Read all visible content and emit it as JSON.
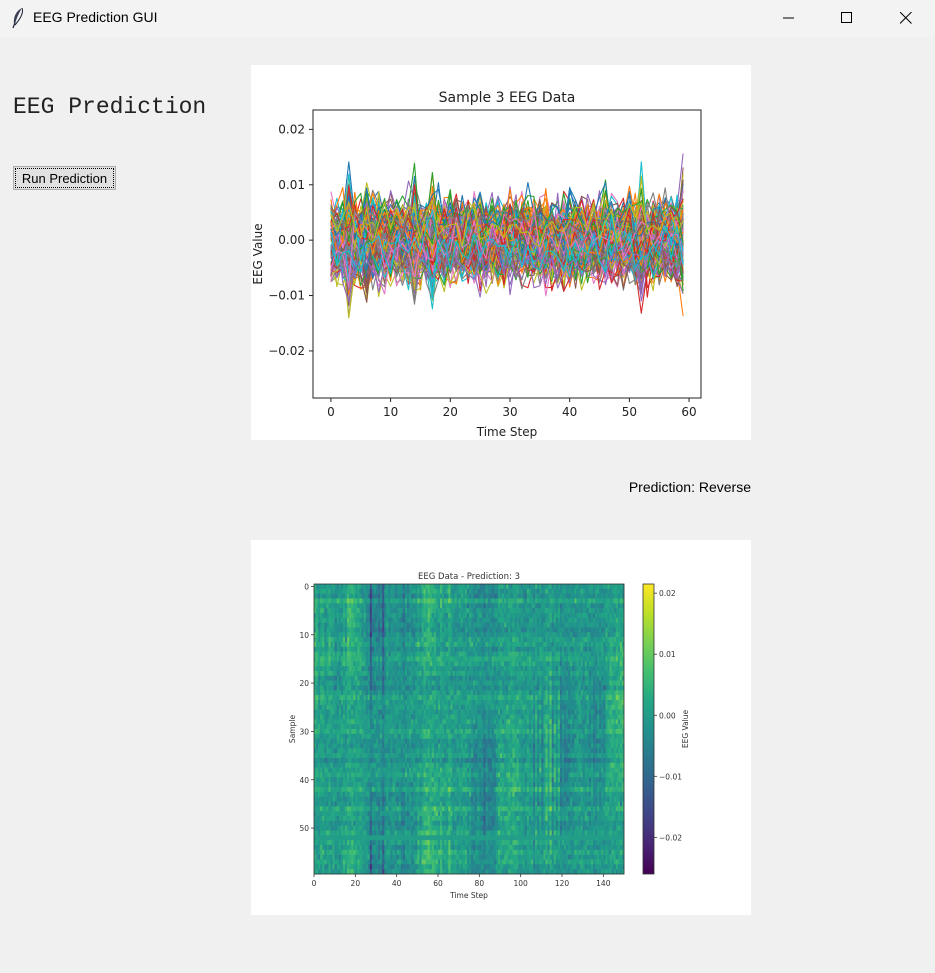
{
  "window": {
    "title": "EEG Prediction GUI",
    "app_icon": "feather-icon",
    "controls": [
      "minimize-icon",
      "maximize-icon",
      "close-icon"
    ]
  },
  "main": {
    "heading": "EEG Prediction",
    "run_button_label": "Run Prediction",
    "prediction_text": "Prediction: Reverse"
  },
  "chart_data": [
    {
      "type": "line",
      "title": "Sample 3 EEG Data",
      "xlabel": "Time Step",
      "ylabel": "EEG Value",
      "xlim": [
        -3,
        62
      ],
      "ylim": [
        -0.0285,
        0.0235
      ],
      "xticks": [
        0,
        10,
        20,
        30,
        40,
        50,
        60
      ],
      "xtick_labels": [
        "0",
        "10",
        "20",
        "30",
        "40",
        "50",
        "60"
      ],
      "yticks": [
        0.02,
        0.01,
        0.0,
        -0.01,
        -0.02
      ],
      "ytick_labels": [
        "0.02",
        "0.01",
        "0.00",
        "−0.01",
        "−0.02"
      ],
      "x_range": [
        0,
        59
      ],
      "value_range": [
        -0.026,
        0.021
      ],
      "series_count": 150,
      "grid": false,
      "legend": "none"
    },
    {
      "type": "heatmap",
      "title": "EEG Data - Prediction: 3",
      "xlabel": "Time Step",
      "ylabel": "Sample",
      "xlim": [
        0,
        150
      ],
      "ylim": [
        0,
        60
      ],
      "xticks": [
        0,
        20,
        40,
        60,
        80,
        100,
        120,
        140
      ],
      "xtick_labels": [
        "0",
        "20",
        "40",
        "60",
        "80",
        "100",
        "120",
        "140"
      ],
      "yticks": [
        0,
        10,
        20,
        30,
        40,
        50
      ],
      "ytick_labels": [
        "0",
        "10",
        "20",
        "30",
        "40",
        "50"
      ],
      "colorbar_label": "EEG Value",
      "colorbar_ticks": [
        0.02,
        0.01,
        0.0,
        -0.01,
        -0.02
      ],
      "colorbar_tick_labels": [
        "0.02",
        "0.01",
        "0.00",
        "−0.01",
        "−0.02"
      ],
      "colorbar_range": [
        -0.026,
        0.0215
      ],
      "colormap": "viridis"
    }
  ]
}
